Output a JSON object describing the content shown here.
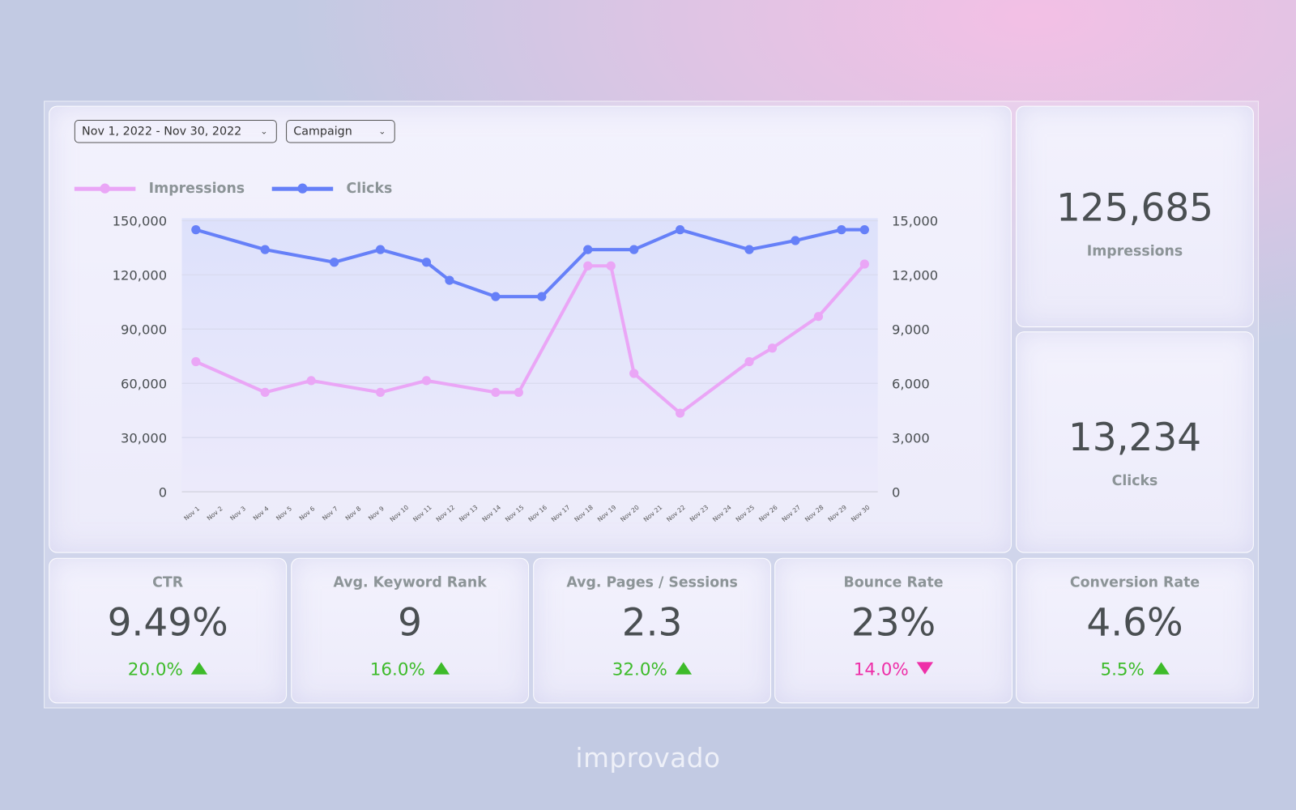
{
  "filters": {
    "date_range": "Nov 1, 2022 - Nov 30, 2022",
    "dimension": "Campaign"
  },
  "colors": {
    "impressions": "#eaa6f6",
    "clicks": "#6680f8",
    "positive": "#3dbb2a",
    "negative": "#ee2fa8"
  },
  "chart_data": {
    "type": "line",
    "legend": [
      "Impressions",
      "Clicks"
    ],
    "legend_position": "top-left",
    "categories": [
      "Nov 1",
      "Nov 2",
      "Nov 3",
      "Nov 4",
      "Nov 5",
      "Nov 6",
      "Nov 7",
      "Nov 8",
      "Nov 9",
      "Nov 10",
      "Nov 11",
      "Nov 12",
      "Nov 13",
      "Nov 14",
      "Nov 15",
      "Nov 16",
      "Nov 17",
      "Nov 18",
      "Nov 19",
      "Nov 20",
      "Nov 21",
      "Nov 22",
      "Nov 23",
      "Nov 24",
      "Nov 25",
      "Nov 26",
      "Nov 27",
      "Nov 28",
      "Nov 29",
      "Nov 30"
    ],
    "y_left": {
      "ticks": [
        "0",
        "30,000",
        "60,000",
        "90,000",
        "120,000",
        "150,000"
      ],
      "range": [
        0,
        150000
      ]
    },
    "y_right": {
      "ticks": [
        "0",
        "3,000",
        "6,000",
        "9,000",
        "12,000",
        "15,000"
      ],
      "range": [
        0,
        15000
      ]
    },
    "grid": true,
    "series": [
      {
        "name": "Impressions",
        "axis": "left",
        "points": [
          [
            "Nov 1",
            72000
          ],
          [
            "Nov 4",
            55000
          ],
          [
            "Nov 6",
            61500
          ],
          [
            "Nov 9",
            55000
          ],
          [
            "Nov 11",
            61500
          ],
          [
            "Nov 14",
            55000
          ],
          [
            "Nov 15",
            55000
          ],
          [
            "Nov 18",
            125000
          ],
          [
            "Nov 19",
            125000
          ],
          [
            "Nov 20",
            65500
          ],
          [
            "Nov 22",
            43500
          ],
          [
            "Nov 25",
            72000
          ],
          [
            "Nov 26",
            79500
          ],
          [
            "Nov 28",
            97000
          ],
          [
            "Nov 30",
            126000
          ]
        ]
      },
      {
        "name": "Clicks",
        "axis": "right",
        "points": [
          [
            "Nov 1",
            14500
          ],
          [
            "Nov 4",
            13400
          ],
          [
            "Nov 7",
            12700
          ],
          [
            "Nov 9",
            13400
          ],
          [
            "Nov 11",
            12700
          ],
          [
            "Nov 12",
            11700
          ],
          [
            "Nov 14",
            10800
          ],
          [
            "Nov 16",
            10800
          ],
          [
            "Nov 18",
            13400
          ],
          [
            "Nov 20",
            13400
          ],
          [
            "Nov 22",
            14500
          ],
          [
            "Nov 25",
            13400
          ],
          [
            "Nov 27",
            13900
          ],
          [
            "Nov 29",
            14500
          ],
          [
            "Nov 30",
            14500
          ]
        ]
      }
    ]
  },
  "totals": [
    {
      "value": "125,685",
      "label": "Impressions"
    },
    {
      "value": "13,234",
      "label": "Clicks"
    }
  ],
  "kpis": [
    {
      "label": "CTR",
      "value": "9.49%",
      "delta": "20.0%",
      "direction": "up"
    },
    {
      "label": "Avg. Keyword Rank",
      "value": "9",
      "delta": "16.0%",
      "direction": "up"
    },
    {
      "label": "Avg. Pages / Sessions",
      "value": "2.3",
      "delta": "32.0%",
      "direction": "up"
    },
    {
      "label": "Bounce Rate",
      "value": "23%",
      "delta": "14.0%",
      "direction": "down"
    },
    {
      "label": "Conversion Rate",
      "value": "4.6%",
      "delta": "5.5%",
      "direction": "up"
    }
  ],
  "brand": "improvado"
}
